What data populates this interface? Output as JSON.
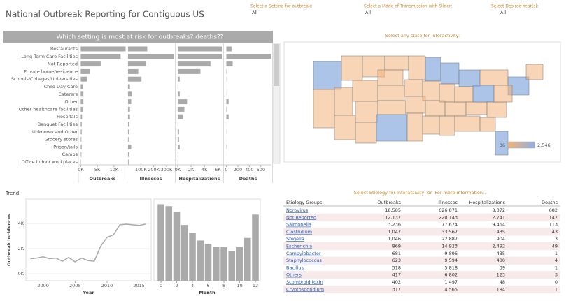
{
  "header": {
    "title": "National Outbreak Reporting for Contiguous US",
    "filters": [
      {
        "label": "Select a Setting for outbreak:",
        "value": "All"
      },
      {
        "label": "Select a Mode of Transmission with Slider:",
        "value": "All"
      },
      {
        "label": "Select Desired Year(s):",
        "value": "All"
      }
    ]
  },
  "chart_data": [
    {
      "type": "hbar",
      "title": "Which setting is most at risk for outbreaks? deaths??",
      "categories": [
        "Restaurants",
        "Long Term Care Facilities",
        "Not Reported",
        "Private home/residence",
        "Schools/Colleges/Universities",
        "Child Day Care",
        "Caterers",
        "Other",
        "Other healthcare facilities",
        "Hospitals",
        "Banquet Facilities",
        "Unknown and Other",
        "Grocery stores",
        "Prison/jails",
        "Camps",
        "Office indoor workplaces"
      ],
      "color": "#aaaaaa",
      "series": [
        {
          "name": "Outbreaks",
          "values": [
            13.5,
            12,
            6,
            2.7,
            1.9,
            0.6,
            0.8,
            0.8,
            0.6,
            0.4,
            0.3,
            0.3,
            0.2,
            0.3,
            0.2,
            0.1
          ],
          "xlim": [
            -0.5,
            13.6
          ],
          "xticks": [
            {
              "value": 0,
              "label": "0K"
            },
            {
              "value": 5,
              "label": "5K"
            },
            {
              "value": 10,
              "label": "10K"
            }
          ]
        },
        {
          "name": "Illnesses",
          "values": [
            150,
            355,
            140,
            80,
            105,
            15,
            30,
            25,
            15,
            15,
            10,
            10,
            5,
            25,
            10,
            5
          ],
          "xlim": [
            -5,
            360
          ],
          "xticks": [
            {
              "value": 100,
              "label": "100K"
            },
            {
              "value": 200,
              "label": "200K"
            },
            {
              "value": 300,
              "label": "300K"
            }
          ]
        },
        {
          "name": "Hospitalizations",
          "values": [
            6.6,
            6.6,
            4.9,
            3.4,
            0.3,
            0.05,
            0.3,
            1.4,
            1,
            0.8,
            0.1,
            0.2,
            0.2,
            0.3,
            0.1,
            0.05
          ],
          "xlim": [
            -0.2,
            6.7
          ],
          "xticks": [
            {
              "value": 0,
              "label": "0K"
            },
            {
              "value": 2,
              "label": "2K"
            },
            {
              "value": 4,
              "label": "4K"
            },
            {
              "value": 6,
              "label": "6K"
            }
          ]
        },
        {
          "name": "Deaths",
          "values": [
            90,
            780,
            110,
            5,
            3,
            1,
            2,
            40,
            8,
            40,
            1,
            3,
            1,
            4,
            1,
            1
          ],
          "xlim": [
            -30,
            785
          ],
          "xticks": [
            0,
            200,
            400,
            600
          ]
        }
      ]
    },
    {
      "type": "line",
      "title": "Trend",
      "ylabel": "Outbreak incidences",
      "xlabel": "Year",
      "color": "#aaaaaa",
      "x": [
        1998,
        1999,
        2000,
        2001,
        2002,
        2003,
        2004,
        2005,
        2006,
        2007,
        2008,
        2009,
        2010,
        2011,
        2012,
        2013,
        2014,
        2015,
        2016
      ],
      "values": [
        1.2,
        1.25,
        1.35,
        1.2,
        1.25,
        1.0,
        1.3,
        0.95,
        1.25,
        1.05,
        1.0,
        2.2,
        2.9,
        3.1,
        3.9,
        3.95,
        3.9,
        3.85,
        3.95
      ],
      "xlim": [
        1997.3,
        2016.9
      ],
      "xticks": [
        2000,
        2005,
        2010,
        2015
      ],
      "ylim": [
        -0.55,
        5.95
      ],
      "yticks": [
        {
          "value": 0,
          "label": "0K"
        },
        {
          "value": 2,
          "label": "2K"
        },
        {
          "value": 4,
          "label": "4K"
        }
      ],
      "grid": true
    },
    {
      "type": "bar",
      "xlabel": "Month",
      "color": "#aaaaaa",
      "x": [
        0,
        1,
        2,
        3,
        4,
        5,
        6,
        7,
        8,
        9,
        10,
        11,
        12
      ],
      "values": [
        5.9,
        5.75,
        5.3,
        4.3,
        3.7,
        3.1,
        2.85,
        2.6,
        2.6,
        2.3,
        2.6,
        3.3,
        5.1
      ],
      "xlim": [
        -0.89,
        12.62
      ],
      "xticks": [
        0,
        2,
        4,
        6,
        8,
        10,
        12
      ],
      "ylim": [
        0,
        6.3
      ]
    }
  ],
  "map": {
    "title": "Select any state for interactivity:",
    "colors": [
      "#f3b27a",
      "#8fb0e0"
    ],
    "legend": [
      36,
      {
        "value": 2546,
        "label": "2,546"
      }
    ]
  },
  "table": {
    "title": "Select Etiology for interactivity -or- For more information:.",
    "columns": [
      "Etiology Groups",
      "Outbreaks",
      "Illnesses",
      "Hospitalizations",
      "Deaths"
    ],
    "rows": [
      [
        "Norovirus",
        "18,585",
        "626,871",
        "8,372",
        "682"
      ],
      [
        "Not Reported",
        "12,137",
        "220,143",
        "2,741",
        "147"
      ],
      [
        "Salmonella",
        "3,236",
        "77,674",
        "9,464",
        "113"
      ],
      [
        "Clostridium",
        "1,047",
        "33,567",
        "435",
        "43"
      ],
      [
        "Shigella",
        "1,046",
        "22,887",
        "904",
        "3"
      ],
      [
        "Escherichia",
        "869",
        "14,923",
        "2,492",
        "49"
      ],
      [
        "Campylobacter",
        "681",
        "9,896",
        "435",
        "1"
      ],
      [
        "Staphylococcus",
        "623",
        "9,594",
        "480",
        "4"
      ],
      [
        "Bacillus",
        "518",
        "5,818",
        "39",
        "1"
      ],
      [
        "Others",
        "417",
        "6,802",
        "123",
        "3"
      ],
      [
        "Scombroid toxin",
        "402",
        "1,497",
        "48",
        "0"
      ],
      [
        "Cryptosporidium",
        "317",
        "4,565",
        "184",
        "1"
      ]
    ]
  }
}
